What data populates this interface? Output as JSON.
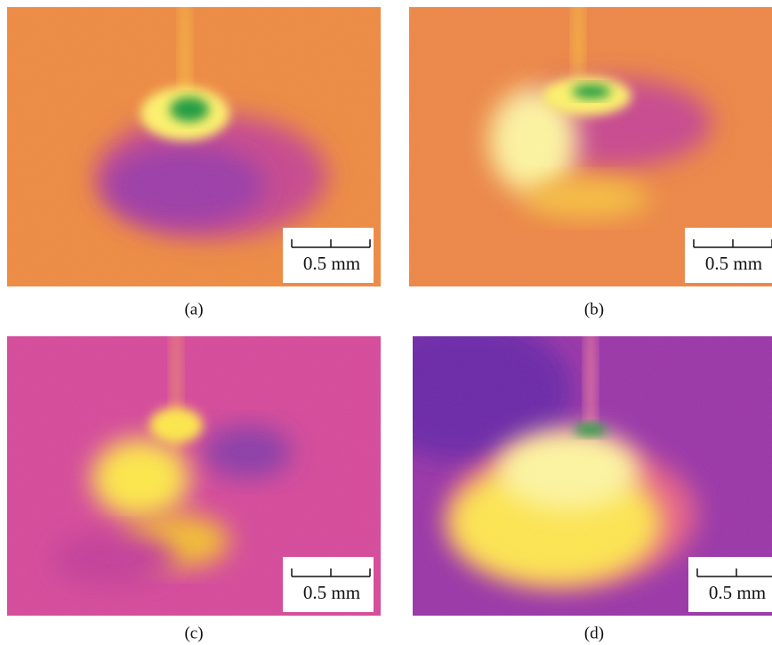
{
  "panels": [
    {
      "label": "(a)",
      "scale_bar": "0.5 mm"
    },
    {
      "label": "(b)",
      "scale_bar": "0.5 mm"
    },
    {
      "label": "(c)",
      "scale_bar": "0.5 mm"
    },
    {
      "label": "(d)",
      "scale_bar": "0.5 mm"
    }
  ]
}
